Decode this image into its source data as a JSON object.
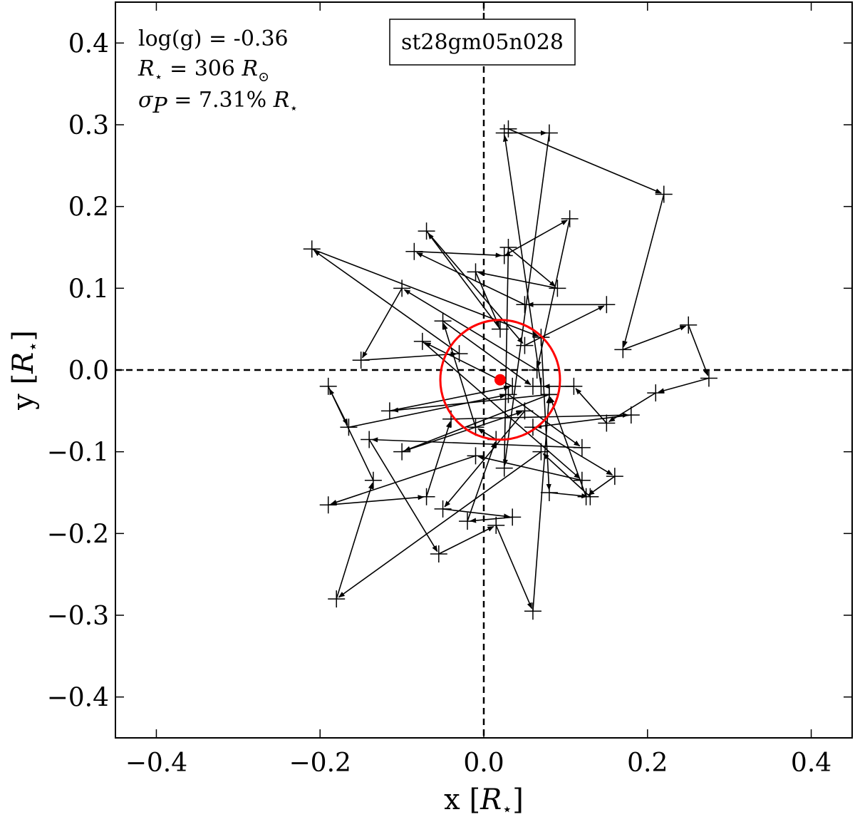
{
  "chart_data": {
    "type": "scatter",
    "model_label": "st28gm05n028",
    "annotations": {
      "logg_label": "log(g) = -0.36",
      "radius_lhs": "R",
      "radius_eq": " = 306 ",
      "radius_rhs": "R",
      "sigma_lhs": "σ",
      "sigma_sub": "P",
      "sigma_eq": " = 7.31% ",
      "sigma_rhs": "R",
      "star_sub": "⋆",
      "sun_sub": "⊙"
    },
    "xlabel": {
      "text": "x [",
      "math": "R",
      "sub": "⋆",
      "close": "]"
    },
    "ylabel": {
      "text": "y [",
      "math": "R",
      "sub": "⋆",
      "close": "]"
    },
    "xlim": [
      -0.45,
      0.45
    ],
    "ylim": [
      -0.45,
      0.45
    ],
    "x_ticks": [
      -0.4,
      -0.2,
      0.0,
      0.2,
      0.4
    ],
    "y_ticks": [
      -0.4,
      -0.3,
      -0.2,
      -0.1,
      0.0,
      0.1,
      0.2,
      0.3,
      0.4
    ],
    "x_tick_labels": [
      "−0.4",
      "−0.2",
      "0.0",
      "0.2",
      "0.4"
    ],
    "y_tick_labels": [
      "−0.4",
      "−0.3",
      "−0.2",
      "−0.1",
      "0.0",
      "0.1",
      "0.2",
      "0.3",
      "0.4"
    ],
    "reference_lines": {
      "x": 0.0,
      "y": 0.0,
      "style": "dashed"
    },
    "mean_position": {
      "x": 0.02,
      "y": -0.012
    },
    "sigma_circle_radius": 0.0731,
    "colors": {
      "trajectory": "#000000",
      "mean": "#ff0000",
      "circle": "#ff0000"
    },
    "track": [
      [
        0.03,
        0.295
      ],
      [
        0.22,
        0.215
      ],
      [
        0.17,
        0.025
      ],
      [
        0.25,
        0.055
      ],
      [
        0.275,
        -0.01
      ],
      [
        0.21,
        -0.028
      ],
      [
        0.15,
        -0.065
      ],
      [
        0.11,
        -0.02
      ],
      [
        0.07,
        -0.02
      ],
      [
        0.025,
        0.29
      ],
      [
        0.08,
        0.29
      ],
      [
        0.025,
        -0.12
      ],
      [
        0.03,
        0.15
      ],
      [
        0.09,
        0.1
      ],
      [
        -0.01,
        0.12
      ],
      [
        0.02,
        0.05
      ],
      [
        -0.07,
        0.17
      ],
      [
        0.05,
        0.03
      ],
      [
        0.15,
        0.08
      ],
      [
        0.05,
        0.08
      ],
      [
        -0.085,
        0.145
      ],
      [
        0.025,
        0.14
      ],
      [
        0.105,
        0.185
      ],
      [
        0.065,
        0.0
      ],
      [
        -0.1,
        0.1
      ],
      [
        -0.15,
        0.012
      ],
      [
        -0.03,
        0.02
      ],
      [
        -0.21,
        0.148
      ],
      [
        0.07,
        0.04
      ],
      [
        0.08,
        -0.15
      ],
      [
        0.13,
        -0.155
      ],
      [
        0.07,
        -0.1
      ],
      [
        -0.18,
        -0.28
      ],
      [
        -0.135,
        -0.135
      ],
      [
        -0.19,
        -0.02
      ],
      [
        -0.165,
        -0.07
      ],
      [
        0.03,
        -0.03
      ],
      [
        0.12,
        -0.095
      ],
      [
        -0.14,
        -0.085
      ],
      [
        -0.055,
        -0.225
      ],
      [
        0.015,
        -0.19
      ],
      [
        0.06,
        -0.295
      ],
      [
        0.08,
        -0.03
      ],
      [
        -0.115,
        -0.05
      ],
      [
        0.035,
        -0.02
      ],
      [
        -0.075,
        0.035
      ],
      [
        0.12,
        -0.135
      ],
      [
        -0.01,
        -0.105
      ],
      [
        -0.19,
        -0.165
      ],
      [
        -0.07,
        -0.155
      ],
      [
        -0.04,
        -0.06
      ],
      [
        0.18,
        -0.055
      ],
      [
        0.06,
        -0.07
      ],
      [
        0.16,
        -0.13
      ],
      [
        0.125,
        -0.155
      ],
      [
        0.08,
        -0.03
      ],
      [
        -0.1,
        -0.1
      ],
      [
        0.05,
        -0.05
      ],
      [
        -0.05,
        -0.17
      ],
      [
        0.035,
        -0.18
      ],
      [
        -0.02,
        -0.185
      ],
      [
        0.015,
        -0.085
      ],
      [
        -0.01,
        -0.07
      ],
      [
        -0.05,
        0.06
      ],
      [
        0.06,
        -0.02
      ]
    ]
  }
}
